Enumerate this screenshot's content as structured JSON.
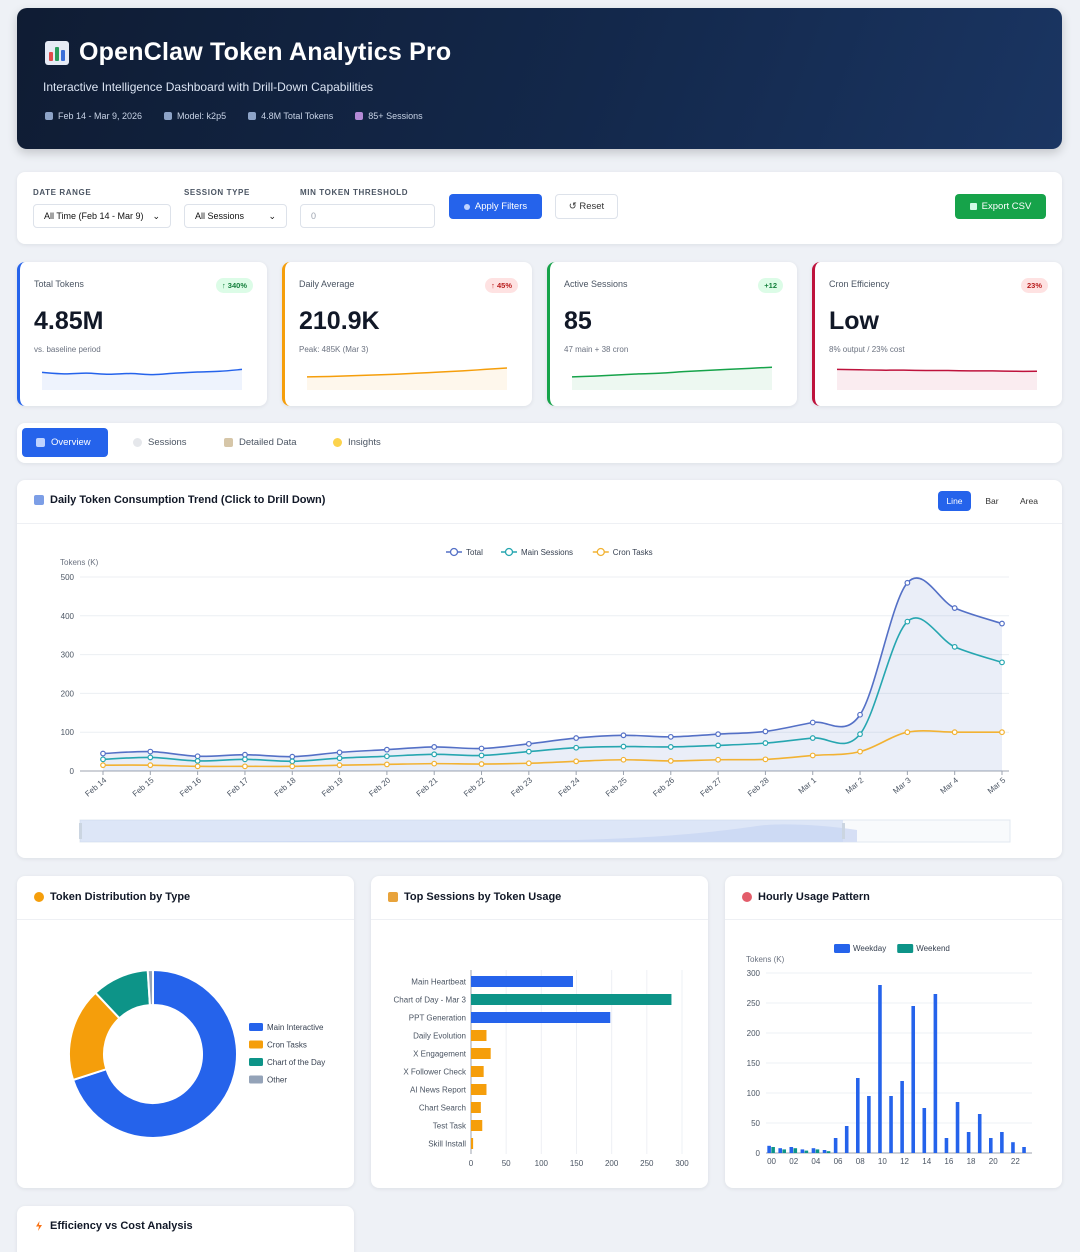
{
  "header": {
    "title": "OpenClaw Token Analytics Pro",
    "subtitle": "Interactive Intelligence Dashboard with Drill-Down Capabilities",
    "meta": [
      {
        "icon": "calendar-icon",
        "text": "Feb 14 - Mar 9, 2026"
      },
      {
        "icon": "robot-icon",
        "text": "Model: k2p5"
      },
      {
        "icon": "chart-icon",
        "text": "4.8M Total Tokens"
      },
      {
        "icon": "disk-icon",
        "text": "85+ Sessions"
      }
    ]
  },
  "filters": {
    "date_range_label": "DATE RANGE",
    "date_range_value": "All Time (Feb 14 - Mar 9)",
    "session_type_label": "SESSION TYPE",
    "session_type_value": "All Sessions",
    "min_threshold_label": "MIN TOKEN THRESHOLD",
    "min_threshold_placeholder": "0",
    "apply_label": "Apply Filters",
    "reset_label": "↺ Reset",
    "export_label": "Export CSV"
  },
  "kpis": [
    {
      "label": "Total Tokens",
      "badge": "↑ 340%",
      "value": "4.85M",
      "sub": "vs. baseline period",
      "color": "#2563eb",
      "spark": [
        42,
        38,
        40,
        37,
        39,
        36,
        40,
        43,
        45,
        50
      ]
    },
    {
      "label": "Daily Average",
      "badge": "↑ 45%",
      "value": "210.9K",
      "sub": "Peak: 485K (Mar 3)",
      "color": "#f59e0b",
      "spark": [
        30,
        31,
        33,
        35,
        37,
        40,
        43,
        46,
        50,
        54
      ]
    },
    {
      "label": "Active Sessions",
      "badge": "+12",
      "value": "85",
      "sub": "47 main + 38 cron",
      "color": "#16a34a",
      "spark": [
        30,
        32,
        35,
        38,
        40,
        44,
        47,
        50,
        53,
        56
      ]
    },
    {
      "label": "Cron Efficiency",
      "badge": "23%",
      "value": "Low",
      "sub": "8% output / 23% cost",
      "color": "#be123c",
      "spark": [
        50,
        49,
        48,
        48,
        47,
        47,
        46,
        46,
        45,
        45
      ]
    }
  ],
  "tabs": [
    {
      "label": "Overview",
      "icon": "chart-icon"
    },
    {
      "label": "Sessions",
      "icon": "chat-icon"
    },
    {
      "label": "Detailed Data",
      "icon": "clipboard-icon"
    },
    {
      "label": "Insights",
      "icon": "bulb-icon"
    }
  ],
  "trend": {
    "title": "Daily Token Consumption Trend (Click to Drill Down)",
    "modes": [
      "Line",
      "Bar",
      "Area"
    ],
    "active_mode": "Line"
  },
  "distribution": {
    "title": "Token Distribution by Type"
  },
  "top_sessions": {
    "title": "Top Sessions by Token Usage"
  },
  "hourly": {
    "title": "Hourly Usage Pattern"
  },
  "efficiency": {
    "title": "Efficiency vs Cost Analysis"
  },
  "chart_data": [
    {
      "type": "line",
      "ylabel": "Tokens (K)",
      "ylim": [
        0,
        500
      ],
      "yticks": [
        0,
        100,
        200,
        300,
        400,
        500
      ],
      "x": [
        "Feb 14",
        "Feb 15",
        "Feb 16",
        "Feb 17",
        "Feb 18",
        "Feb 19",
        "Feb 20",
        "Feb 21",
        "Feb 22",
        "Feb 23",
        "Feb 24",
        "Feb 25",
        "Feb 26",
        "Feb 27",
        "Feb 28",
        "Mar 1",
        "Mar 2",
        "Mar 3",
        "Mar 4",
        "Mar 5"
      ],
      "legend_position": "top",
      "grid": true,
      "series": [
        {
          "name": "Total",
          "color": "#5470c6",
          "values": [
            45,
            50,
            38,
            42,
            37,
            48,
            55,
            62,
            58,
            70,
            85,
            92,
            88,
            95,
            102,
            125,
            145,
            485,
            420,
            380
          ]
        },
        {
          "name": "Main Sessions",
          "color": "#26a6b0",
          "values": [
            30,
            35,
            26,
            30,
            25,
            33,
            38,
            43,
            40,
            50,
            60,
            63,
            62,
            66,
            72,
            85,
            95,
            385,
            320,
            280
          ]
        },
        {
          "name": "Cron Tasks",
          "color": "#f2b233",
          "values": [
            15,
            15,
            12,
            12,
            12,
            15,
            17,
            19,
            18,
            20,
            25,
            29,
            26,
            29,
            30,
            40,
            50,
            100,
            100,
            100
          ]
        }
      ]
    },
    {
      "type": "pie",
      "legend_position": "right",
      "slices": [
        {
          "name": "Main Interactive",
          "value": 70,
          "color": "#2563eb"
        },
        {
          "name": "Cron Tasks",
          "value": 18,
          "color": "#f59e0b"
        },
        {
          "name": "Chart of the Day",
          "value": 11,
          "color": "#0d9488"
        },
        {
          "name": "Other",
          "value": 1,
          "color": "#94a3b8"
        }
      ]
    },
    {
      "type": "bar",
      "orientation": "horizontal",
      "xlim": [
        0,
        300
      ],
      "xticks": [
        0,
        50,
        100,
        150,
        200,
        250,
        300
      ],
      "categories": [
        "Main Heartbeat",
        "Chart of Day - Mar 3",
        "PPT Generation",
        "Daily Evolution",
        "X Engagement",
        "X Follower Check",
        "AI News Report",
        "Chart Search",
        "Test Task",
        "Skill Install"
      ],
      "values": [
        145,
        285,
        198,
        22,
        28,
        18,
        22,
        14,
        16,
        3
      ],
      "colors": [
        "#2563eb",
        "#0d9488",
        "#2563eb",
        "#f59e0b",
        "#f59e0b",
        "#f59e0b",
        "#f59e0b",
        "#f59e0b",
        "#f59e0b",
        "#f59e0b"
      ]
    },
    {
      "type": "bar",
      "ylabel": "Tokens (K)",
      "ylim": [
        0,
        300
      ],
      "yticks": [
        0,
        50,
        100,
        150,
        200,
        250,
        300
      ],
      "categories": [
        "00",
        "01",
        "02",
        "03",
        "04",
        "05",
        "06",
        "07",
        "08",
        "09",
        "10",
        "11",
        "12",
        "13",
        "14",
        "15",
        "16",
        "17",
        "18",
        "19",
        "20",
        "21",
        "22",
        "23"
      ],
      "xtick_labels": [
        "00",
        "02",
        "04",
        "06",
        "08",
        "10",
        "12",
        "14",
        "16",
        "18",
        "20",
        "22"
      ],
      "legend_position": "top",
      "series": [
        {
          "name": "Weekday",
          "color": "#2563eb",
          "values": [
            12,
            8,
            10,
            6,
            8,
            5,
            25,
            45,
            125,
            95,
            280,
            95,
            120,
            245,
            75,
            265,
            25,
            85,
            35,
            65,
            25,
            35,
            18,
            10
          ]
        },
        {
          "name": "Weekend",
          "color": "#0d9488",
          "values": [
            10,
            6,
            8,
            4,
            6,
            3,
            0,
            0,
            0,
            0,
            0,
            0,
            0,
            0,
            0,
            0,
            0,
            0,
            0,
            0,
            0,
            0,
            0,
            0
          ]
        }
      ]
    }
  ]
}
